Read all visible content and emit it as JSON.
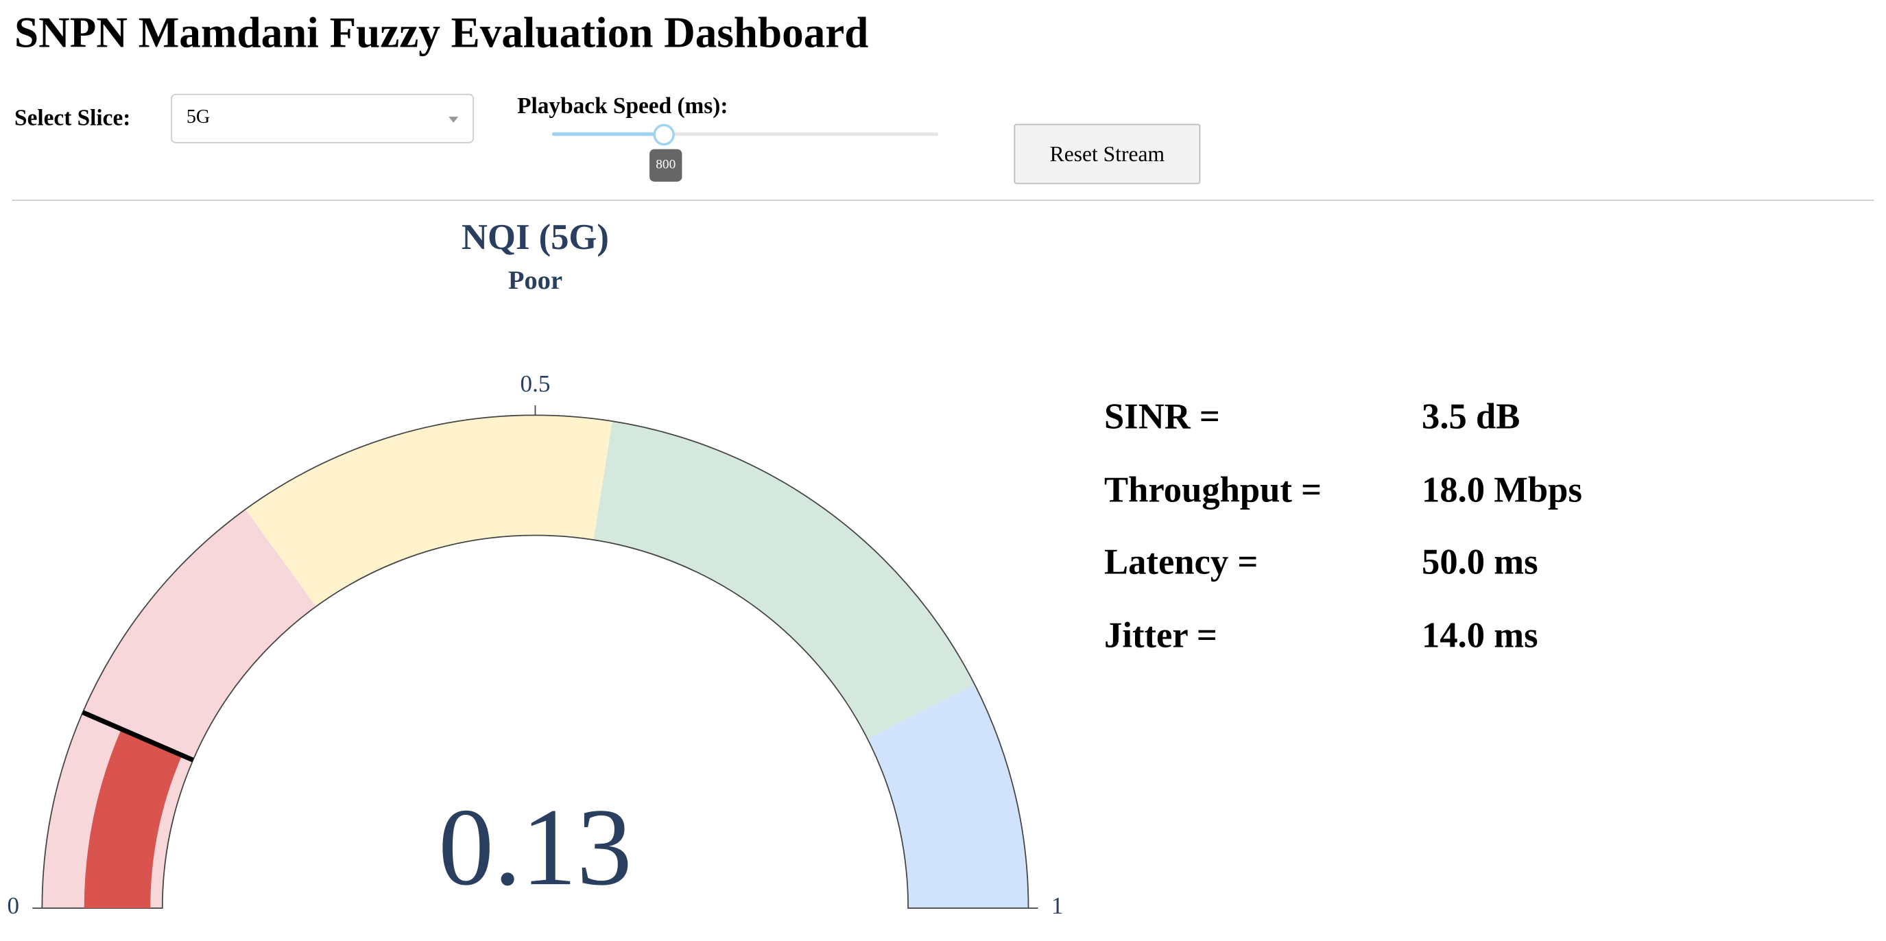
{
  "header": {
    "title": "SNPN Mamdani Fuzzy Evaluation Dashboard"
  },
  "controls": {
    "slice_label": "Select Slice:",
    "slice_value": "5G",
    "speed_label": "Playback Speed (ms):",
    "speed_value": 800,
    "reset_button": "Reset Stream"
  },
  "chart_data": {
    "type": "gauge",
    "title": "NQI (5G)",
    "subtitle": "Poor",
    "value": 0.13,
    "range": [
      0,
      1
    ],
    "ticks": [
      0,
      0.5,
      1
    ],
    "bar_color": "#d9534f",
    "threshold": 0.13,
    "steps": [
      {
        "range": [
          0,
          0.3
        ],
        "color": "#f8d7da"
      },
      {
        "range": [
          0.3,
          0.55
        ],
        "color": "#fff3cd"
      },
      {
        "range": [
          0.55,
          0.85
        ],
        "color": "#d4e8de"
      },
      {
        "range": [
          0.85,
          1
        ],
        "color": "#d0e2fc"
      }
    ]
  },
  "metrics": [
    {
      "label": "SINR =",
      "value": "3.5 dB"
    },
    {
      "label": "Throughput =",
      "value": "18.0 Mbps"
    },
    {
      "label": "Latency =",
      "value": "50.0 ms"
    },
    {
      "label": "Jitter =",
      "value": "14.0 ms"
    }
  ]
}
